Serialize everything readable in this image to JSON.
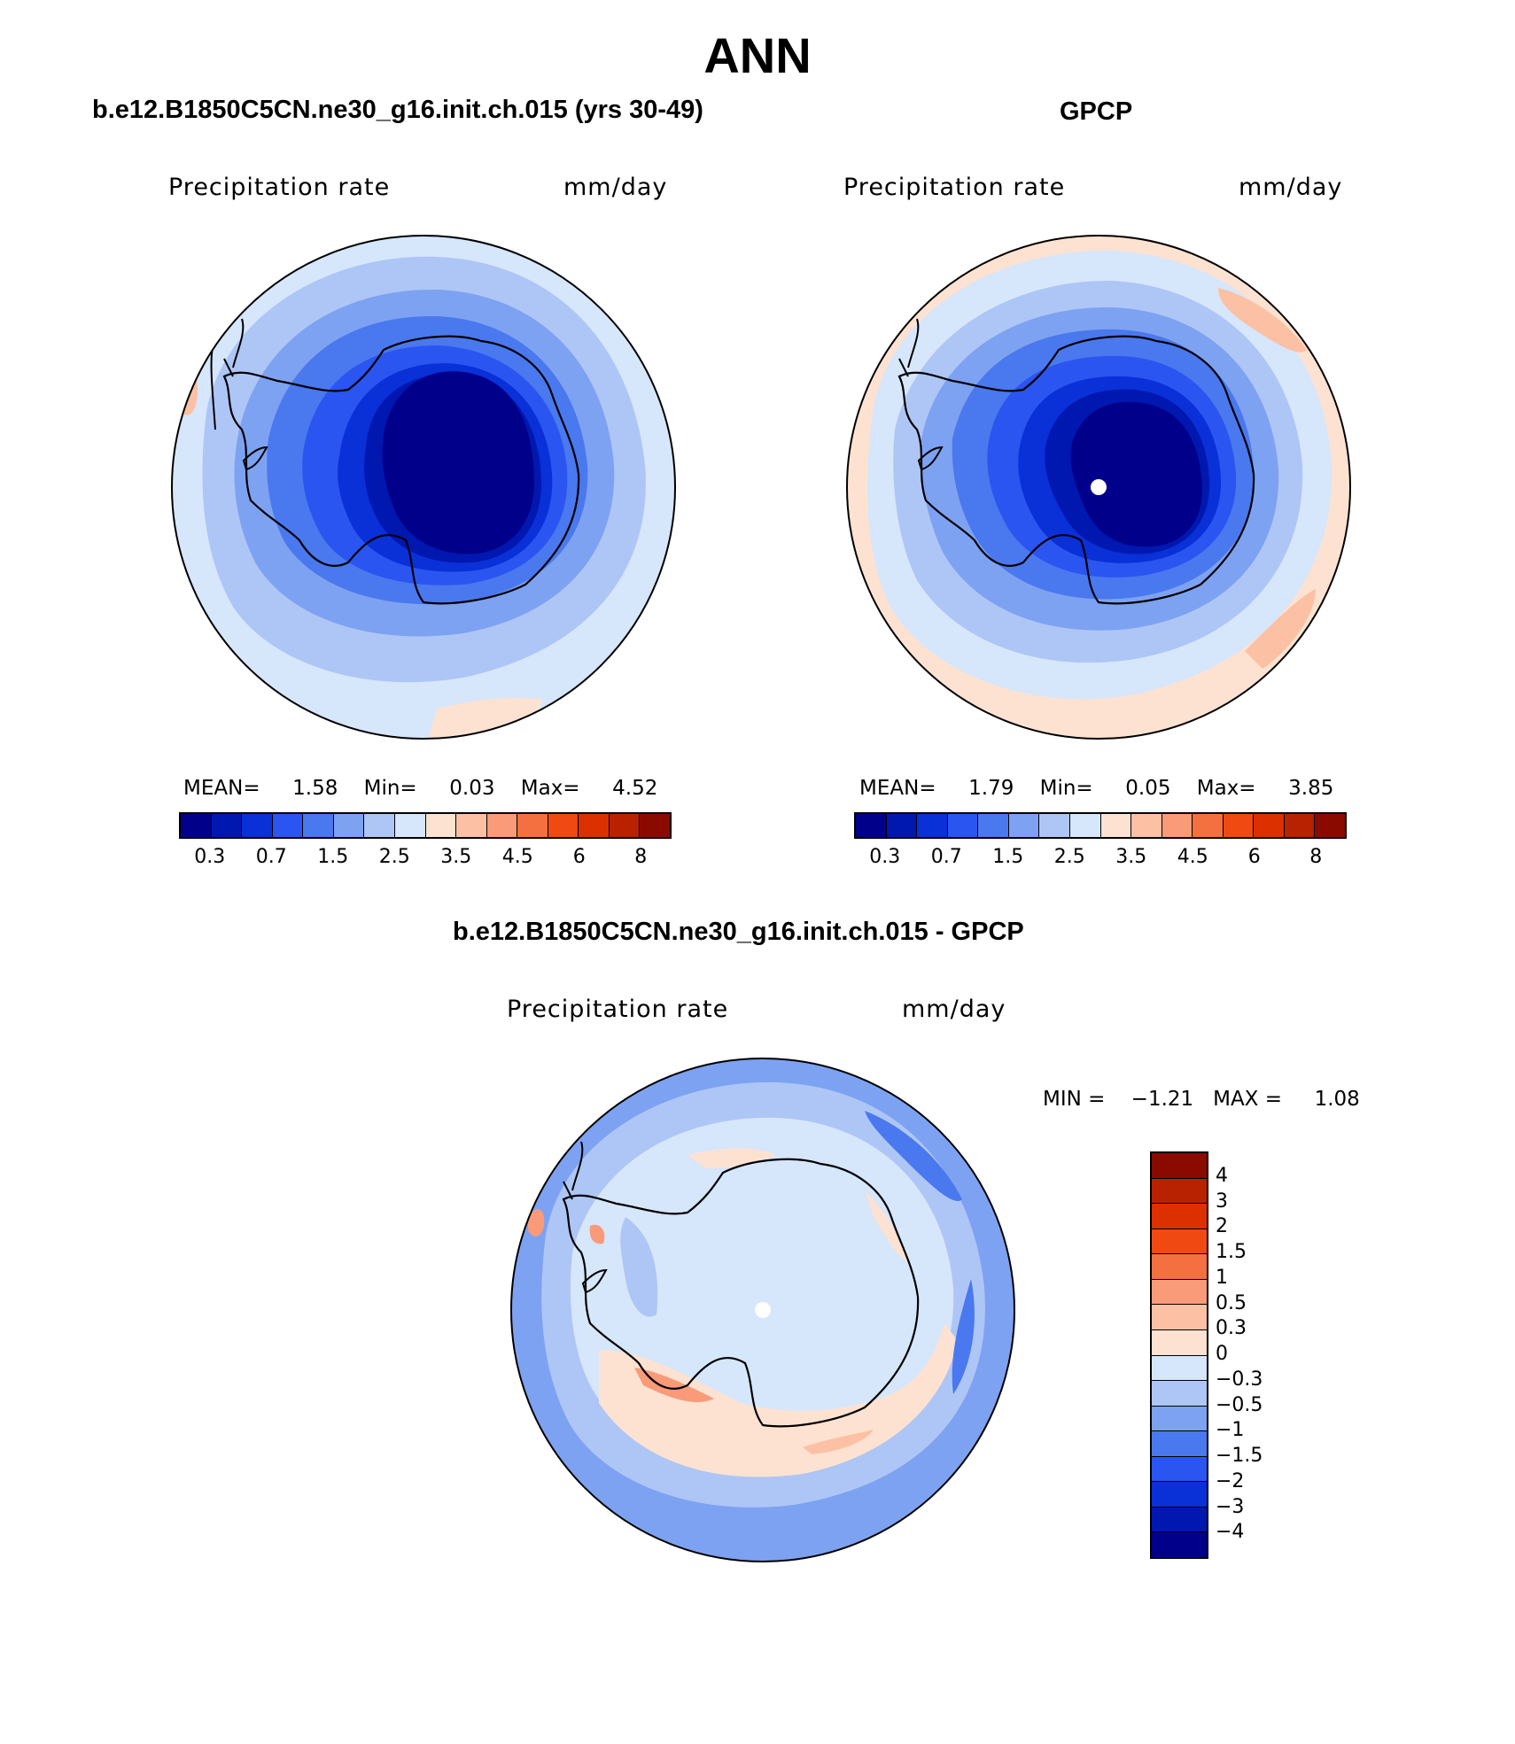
{
  "main_title": "ANN",
  "panels": [
    {
      "title": "b.e12.B1850C5CN.ne30_g16.init.ch.015 (yrs 30-49)",
      "variable": "Precipitation rate",
      "units": "mm/day",
      "stats": {
        "mean_label": "MEAN=",
        "mean": "1.58",
        "min_label": "Min=",
        "min": "0.03",
        "max_label": "Max=",
        "max": "4.52"
      }
    },
    {
      "title": "GPCP",
      "variable": "Precipitation rate",
      "units": "mm/day",
      "stats": {
        "mean_label": "MEAN=",
        "mean": "1.79",
        "min_label": "Min=",
        "min": "0.05",
        "max_label": "Max=",
        "max": "3.85"
      }
    }
  ],
  "diff_panel": {
    "title": "b.e12.B1850C5CN.ne30_g16.init.ch.015 - GPCP",
    "variable": "Precipitation rate",
    "units": "mm/day",
    "min_label": "MIN =",
    "min": "−1.21",
    "max_label": "MAX =",
    "max": "1.08"
  },
  "colorbar": {
    "colors": [
      "#00008b",
      "#0018b0",
      "#0a30d8",
      "#2a55f0",
      "#4a78ee",
      "#7ea2f2",
      "#aec6f6",
      "#d6e6fb",
      "#fde2d2",
      "#fcc0a4",
      "#f99b78",
      "#f57040",
      "#f04a12",
      "#dc3000",
      "#b82200",
      "#8a0a00"
    ],
    "tick_labels": [
      "0.3",
      "0.7",
      "1.5",
      "2.5",
      "3.5",
      "4.5",
      "6",
      "8"
    ]
  },
  "diff_colorbar": {
    "colors": [
      "#8a0a00",
      "#b82200",
      "#dc3000",
      "#f04a12",
      "#f57040",
      "#f99b78",
      "#fcc0a4",
      "#fde2d2",
      "#d6e6fb",
      "#aec6f6",
      "#7ea2f2",
      "#4a78ee",
      "#2a55f0",
      "#0a30d8",
      "#0018b0",
      "#00008b"
    ],
    "tick_labels": [
      "4",
      "3",
      "2",
      "1.5",
      "1",
      "0.5",
      "0.3",
      "0",
      "−0.3",
      "−0.5",
      "−1",
      "−1.5",
      "−2",
      "−3",
      "−4"
    ]
  }
}
